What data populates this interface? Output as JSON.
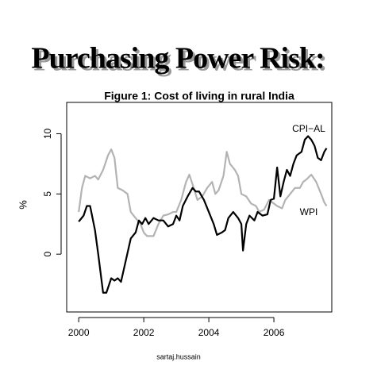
{
  "slide_title": "Purchasing Power Risk:",
  "credit": "sartaj.hussain",
  "chart_data": {
    "type": "line",
    "title": "Figure 1: Cost of living in rural India",
    "ylabel": "%",
    "xlim": [
      1999.63,
      2007.78
    ],
    "ylim": [
      -4.8,
      12.6
    ],
    "xticks": [
      2000,
      2002,
      2004,
      2006
    ],
    "yticks": [
      0,
      5,
      10
    ],
    "grid": false,
    "series": [
      {
        "name": "CPI−AL",
        "color": "#000000",
        "x": [
          2000.0,
          2000.15,
          2000.25,
          2000.35,
          2000.5,
          2000.6,
          2000.75,
          2000.85,
          2001.0,
          2001.1,
          2001.2,
          2001.3,
          2001.45,
          2001.6,
          2001.75,
          2001.85,
          2001.95,
          2002.05,
          2002.15,
          2002.3,
          2002.45,
          2002.6,
          2002.75,
          2002.9,
          2003.0,
          2003.1,
          2003.2,
          2003.35,
          2003.5,
          2003.6,
          2003.7,
          2003.85,
          2004.0,
          2004.15,
          2004.25,
          2004.4,
          2004.5,
          2004.6,
          2004.75,
          2004.9,
          2005.0,
          2005.05,
          2005.15,
          2005.25,
          2005.4,
          2005.5,
          2005.65,
          2005.8,
          2005.9,
          2006.0,
          2006.1,
          2006.2,
          2006.3,
          2006.4,
          2006.5,
          2006.6,
          2006.7,
          2006.85,
          2006.95,
          2007.05,
          2007.15,
          2007.25,
          2007.35,
          2007.45,
          2007.55,
          2007.62
        ],
        "values": [
          2.7,
          3.2,
          4.0,
          4.0,
          2.0,
          0.0,
          -3.2,
          -3.2,
          -2.0,
          -2.2,
          -2.0,
          -2.3,
          -0.5,
          1.3,
          1.8,
          2.8,
          2.5,
          3.0,
          2.5,
          3.0,
          2.8,
          2.8,
          2.3,
          2.5,
          3.2,
          2.8,
          4.0,
          4.8,
          5.5,
          5.2,
          5.2,
          4.5,
          3.5,
          2.5,
          1.6,
          1.8,
          2.0,
          3.0,
          3.5,
          3.0,
          2.5,
          0.3,
          2.5,
          3.2,
          2.8,
          3.5,
          3.2,
          3.3,
          4.5,
          4.6,
          7.2,
          4.8,
          6.0,
          7.0,
          6.5,
          7.5,
          8.2,
          8.5,
          9.5,
          9.8,
          9.5,
          9.0,
          8.0,
          7.8,
          8.5,
          8.8
        ]
      },
      {
        "name": "WPI",
        "color": "#b3b3b3",
        "x": [
          2000.0,
          2000.1,
          2000.2,
          2000.35,
          2000.5,
          2000.6,
          2000.75,
          2000.9,
          2001.0,
          2001.1,
          2001.2,
          2001.35,
          2001.5,
          2001.6,
          2001.75,
          2001.9,
          2002.0,
          2002.1,
          2002.3,
          2002.45,
          2002.6,
          2002.75,
          2002.9,
          2003.0,
          2003.15,
          2003.3,
          2003.4,
          2003.5,
          2003.65,
          2003.8,
          2003.95,
          2004.1,
          2004.2,
          2004.3,
          2004.45,
          2004.55,
          2004.65,
          2004.8,
          2004.9,
          2005.0,
          2005.15,
          2005.3,
          2005.45,
          2005.55,
          2005.7,
          2005.85,
          2005.95,
          2006.1,
          2006.25,
          2006.35,
          2006.5,
          2006.65,
          2006.8,
          2006.9,
          2007.0,
          2007.15,
          2007.3,
          2007.45,
          2007.55,
          2007.62
        ],
        "values": [
          3.5,
          5.5,
          6.5,
          6.3,
          6.5,
          6.2,
          7.0,
          8.2,
          8.7,
          8.0,
          5.5,
          5.3,
          5.0,
          3.5,
          3.0,
          2.5,
          1.8,
          1.5,
          1.5,
          2.5,
          3.2,
          3.3,
          3.5,
          3.5,
          4.5,
          6.0,
          6.6,
          5.8,
          4.5,
          4.8,
          5.5,
          6.0,
          5.0,
          5.3,
          6.5,
          8.5,
          7.5,
          7.0,
          6.5,
          5.0,
          4.8,
          4.2,
          4.0,
          3.5,
          3.7,
          4.5,
          4.3,
          4.0,
          3.8,
          4.5,
          5.0,
          5.5,
          5.5,
          6.0,
          6.2,
          6.6,
          6.0,
          5.0,
          4.3,
          4.0
        ]
      }
    ]
  }
}
